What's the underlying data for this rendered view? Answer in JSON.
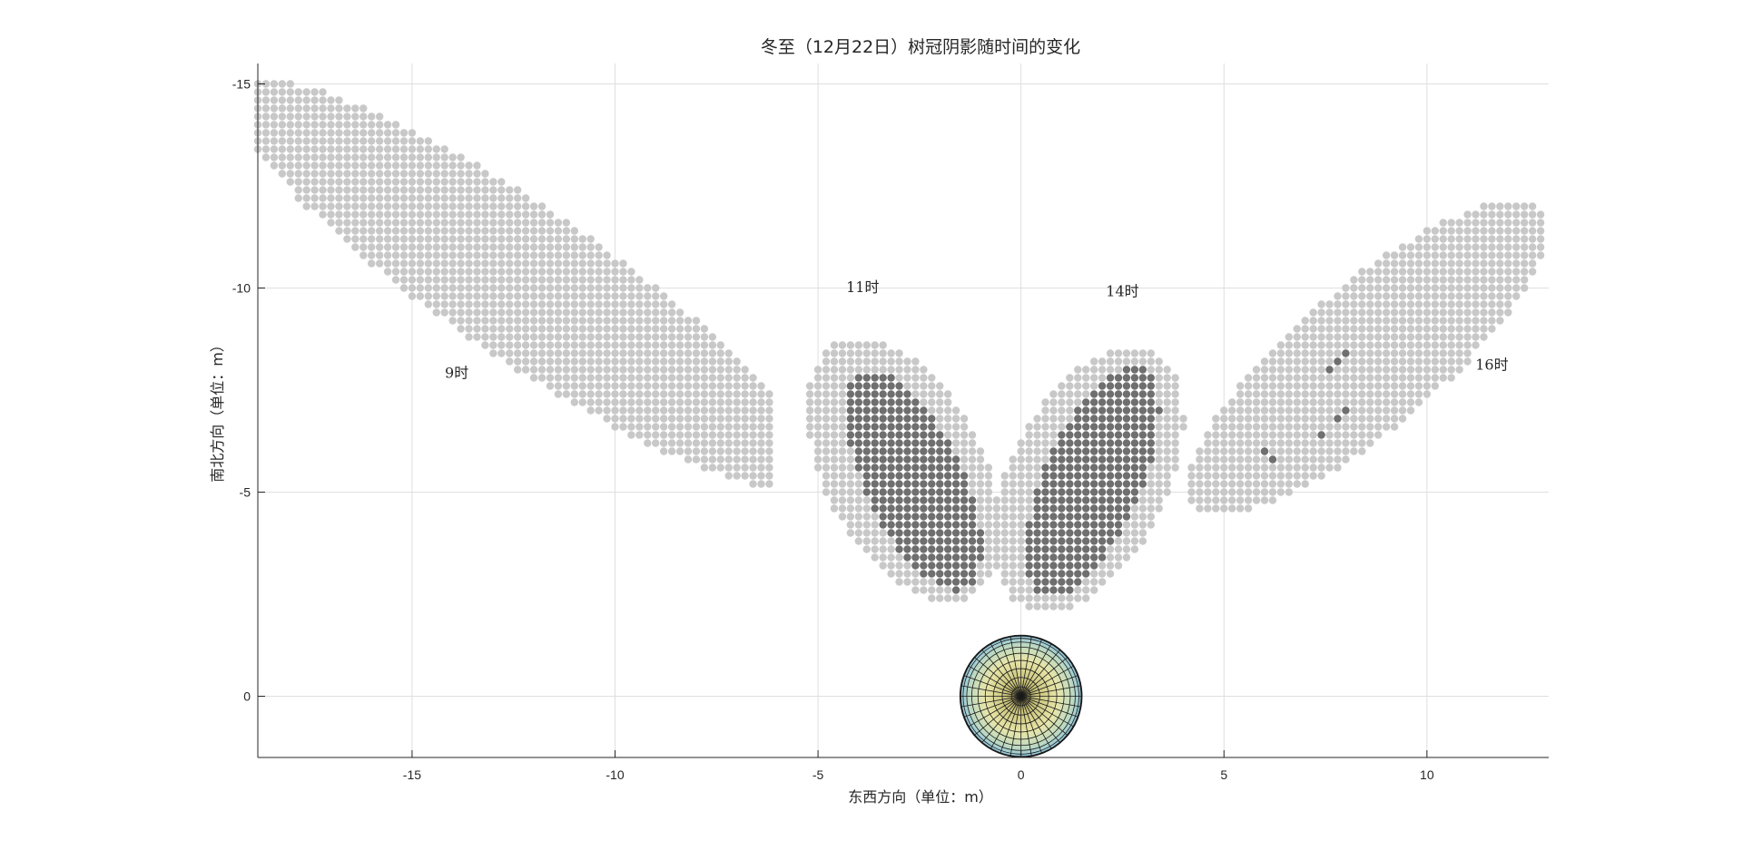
{
  "chart_data": {
    "type": "scatter",
    "title": "冬至（12月22日）树冠阴影随时间的变化",
    "xlabel": "东西方向（单位：m）",
    "ylabel": "南北方向（单位：m）",
    "xlim": [
      -18.8,
      13
    ],
    "ylim": [
      -15.5,
      1.5
    ],
    "y_axis_reversed": true,
    "xticks": [
      -15,
      -10,
      -5,
      0,
      5,
      10
    ],
    "yticks": [
      -15,
      -10,
      -5,
      0
    ],
    "xtick_labels": [
      "-15",
      "-10",
      "-5",
      "0",
      "5",
      "10"
    ],
    "ytick_labels": [
      "-15",
      "-10",
      "-5",
      "0"
    ],
    "grid": true,
    "marker_spacing": 0.2,
    "colors": {
      "light_shadow": "#c8c8c8",
      "dark_shadow": "#6f6f6f",
      "crown_outer": "#8ec5dd",
      "crown_inner": "#e8e6a8",
      "mesh": "#1a1a1a"
    },
    "tree_crown": {
      "center": [
        0,
        0
      ],
      "radius": 1.5,
      "rings": 10,
      "spokes": 36
    },
    "series": [
      {
        "label": "9时",
        "label_at": [
          -13.9,
          -7.8
        ],
        "light_ellipse": {
          "cx": -12.25,
          "cy": -10.1,
          "a": 8.55,
          "b": 1.85,
          "angle_deg": 34,
          "clip_x": [
            -18.8,
            -6.2
          ]
        },
        "dark_ellipse": null,
        "dark_points": []
      },
      {
        "label": "11时",
        "label_at": [
          -3.9,
          -9.9
        ],
        "light_ellipse": {
          "cx": -2.9,
          "cy": -5.55,
          "a": 3.5,
          "b": 1.95,
          "angle_deg": 62
        },
        "dark_ellipse": {
          "cx": -2.65,
          "cy": -5.3,
          "a": 2.95,
          "b": 1.2,
          "angle_deg": 64
        },
        "dark_points": []
      },
      {
        "label": "14时",
        "label_at": [
          2.5,
          -9.8
        ],
        "light_ellipse": {
          "cx": 1.65,
          "cy": -5.3,
          "a": 3.5,
          "b": 1.95,
          "angle_deg": -63
        },
        "dark_ellipse": {
          "cx": 1.75,
          "cy": -5.25,
          "a": 3.05,
          "b": 1.2,
          "angle_deg": -66
        },
        "dark_points": []
      },
      {
        "label": "16时",
        "label_at": [
          11.6,
          -8.0
        ],
        "light_ellipse": {
          "cx": 8.55,
          "cy": -8.3,
          "a": 5.6,
          "b": 1.75,
          "angle_deg": -40,
          "clip_x": [
            3.9,
            13.0
          ]
        },
        "dark_ellipse": null,
        "dark_points": [
          [
            6.0,
            -6.0
          ],
          [
            6.2,
            -5.8
          ],
          [
            7.6,
            -8.0
          ],
          [
            7.8,
            -8.2
          ],
          [
            8.0,
            -8.4
          ],
          [
            7.4,
            -6.4
          ],
          [
            7.8,
            -6.8
          ],
          [
            8.0,
            -7.0
          ]
        ]
      }
    ]
  }
}
